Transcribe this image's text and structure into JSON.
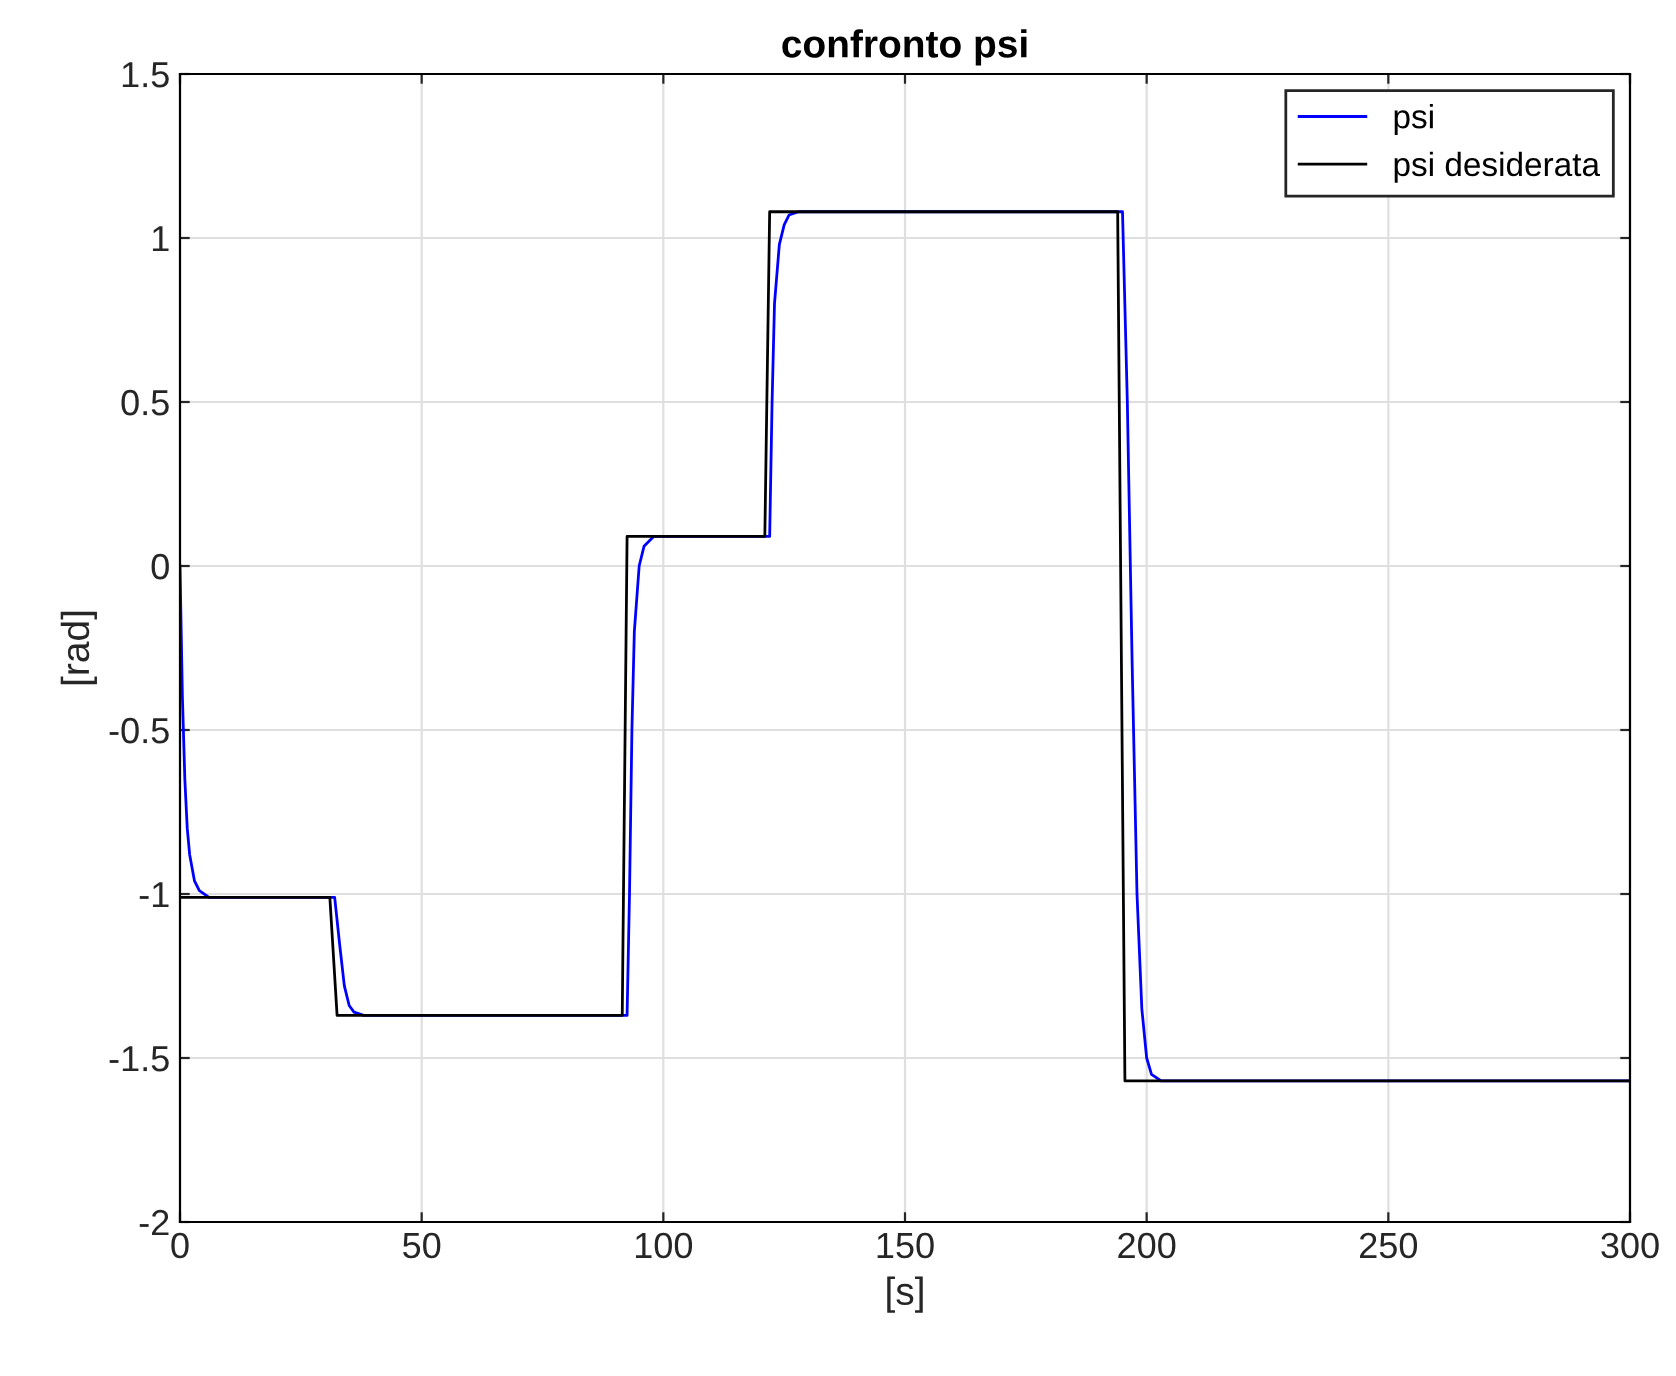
{
  "chart_data": {
    "type": "line",
    "title": "confronto psi",
    "xlabel": "[s]",
    "ylabel": "[rad]",
    "xlim": [
      0,
      300
    ],
    "xticks": [
      0,
      50,
      100,
      150,
      200,
      250,
      300
    ],
    "ylim": [
      -2,
      1.5
    ],
    "yticks": [
      -2,
      -1.5,
      -1,
      -0.5,
      0,
      0.5,
      1,
      1.5
    ],
    "grid": true,
    "legend": "top right",
    "series": [
      {
        "name": "psi",
        "color": "#0000ff",
        "x": [
          0,
          0.5,
          1,
          1.5,
          2,
          3,
          4,
          6,
          32,
          33,
          34,
          35,
          36,
          38,
          92.5,
          93,
          93.5,
          94,
          95,
          96,
          98,
          122,
          122.5,
          123,
          124,
          125,
          126,
          128,
          195,
          196,
          197,
          198,
          199,
          200,
          201,
          203,
          300
        ],
        "values": [
          0,
          -0.4,
          -0.65,
          -0.8,
          -0.88,
          -0.96,
          -0.99,
          -1.01,
          -1.01,
          -1.15,
          -1.28,
          -1.34,
          -1.36,
          -1.37,
          -1.37,
          -1.0,
          -0.5,
          -0.2,
          0.0,
          0.06,
          0.09,
          0.09,
          0.5,
          0.8,
          0.98,
          1.04,
          1.07,
          1.08,
          1.08,
          0.5,
          -0.3,
          -1.0,
          -1.35,
          -1.5,
          -1.55,
          -1.57,
          -1.57
        ]
      },
      {
        "name": "psi desiderata",
        "color": "#000000",
        "x": [
          0,
          31,
          32.5,
          91.5,
          92.5,
          121,
          122,
          194,
          195.5,
          300
        ],
        "values": [
          -1.01,
          -1.01,
          -1.37,
          -1.37,
          0.09,
          0.09,
          1.08,
          1.08,
          -1.57,
          -1.57
        ]
      }
    ]
  }
}
